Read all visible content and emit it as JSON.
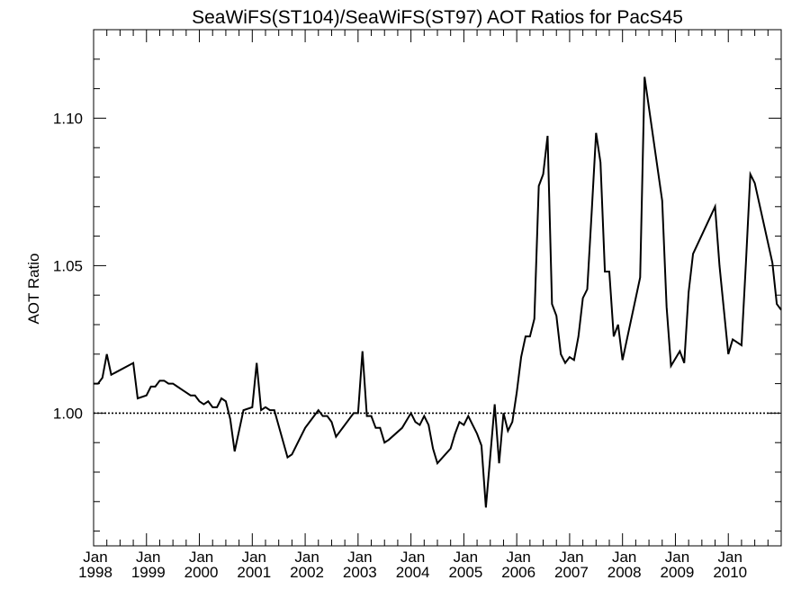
{
  "chart_data": {
    "type": "line",
    "title": "SeaWiFS(ST104)/SeaWiFS(ST97)  AOT Ratios for PacS45",
    "xlabel": "",
    "ylabel": "AOT Ratio",
    "xlim": [
      "1998-01",
      "2010-12"
    ],
    "ylim": [
      0.955,
      1.13
    ],
    "grid": false,
    "legend": "none",
    "line_color": "#000000",
    "y_ticks": [
      {
        "value": 1.0,
        "label": "1.00"
      },
      {
        "value": 1.05,
        "label": "1.05"
      },
      {
        "value": 1.1,
        "label": "1.10"
      }
    ],
    "reference_lines": [
      {
        "value": 1.0,
        "style": "dotted"
      }
    ],
    "x_ticks": [
      {
        "date": "1998-01",
        "month": "Jan",
        "year": "1998"
      },
      {
        "date": "1999-01",
        "month": "Jan",
        "year": "1999"
      },
      {
        "date": "2000-01",
        "month": "Jan",
        "year": "2000"
      },
      {
        "date": "2001-01",
        "month": "Jan",
        "year": "2001"
      },
      {
        "date": "2002-01",
        "month": "Jan",
        "year": "2002"
      },
      {
        "date": "2003-01",
        "month": "Jan",
        "year": "2003"
      },
      {
        "date": "2004-01",
        "month": "Jan",
        "year": "2004"
      },
      {
        "date": "2005-01",
        "month": "Jan",
        "year": "2005"
      },
      {
        "date": "2006-01",
        "month": "Jan",
        "year": "2006"
      },
      {
        "date": "2007-01",
        "month": "Jan",
        "year": "2007"
      },
      {
        "date": "2008-01",
        "month": "Jan",
        "year": "2008"
      },
      {
        "date": "2009-01",
        "month": "Jan",
        "year": "2009"
      },
      {
        "date": "2010-01",
        "month": "Jan",
        "year": "2010"
      }
    ],
    "series": [
      {
        "points": [
          [
            "1998-01",
            1.01
          ],
          [
            "1998-02",
            1.01
          ],
          [
            "1998-03",
            1.012
          ],
          [
            "1998-04",
            1.02
          ],
          [
            "1998-05",
            1.013
          ],
          [
            "1998-10",
            1.017
          ],
          [
            "1998-11",
            1.005
          ],
          [
            "1999-01",
            1.006
          ],
          [
            "1999-02",
            1.009
          ],
          [
            "1999-03",
            1.009
          ],
          [
            "1999-04",
            1.011
          ],
          [
            "1999-05",
            1.011
          ],
          [
            "1999-06",
            1.01
          ],
          [
            "1999-07",
            1.01
          ],
          [
            "1999-08",
            1.009
          ],
          [
            "1999-09",
            1.008
          ],
          [
            "1999-10",
            1.007
          ],
          [
            "1999-11",
            1.006
          ],
          [
            "1999-12",
            1.006
          ],
          [
            "2000-01",
            1.004
          ],
          [
            "2000-02",
            1.003
          ],
          [
            "2000-03",
            1.004
          ],
          [
            "2000-04",
            1.002
          ],
          [
            "2000-05",
            1.002
          ],
          [
            "2000-06",
            1.005
          ],
          [
            "2000-07",
            1.004
          ],
          [
            "2000-08",
            0.998
          ],
          [
            "2000-09",
            0.987
          ],
          [
            "2000-10",
            0.994
          ],
          [
            "2000-11",
            1.001
          ],
          [
            "2001-01",
            1.002
          ],
          [
            "2001-02",
            1.017
          ],
          [
            "2001-03",
            1.001
          ],
          [
            "2001-04",
            1.002
          ],
          [
            "2001-05",
            1.001
          ],
          [
            "2001-06",
            1.001
          ],
          [
            "2001-09",
            0.985
          ],
          [
            "2001-10",
            0.986
          ],
          [
            "2001-11",
            0.989
          ],
          [
            "2002-01",
            0.995
          ],
          [
            "2002-02",
            0.997
          ],
          [
            "2002-04",
            1.001
          ],
          [
            "2002-05",
            0.999
          ],
          [
            "2002-06",
            0.999
          ],
          [
            "2002-07",
            0.997
          ],
          [
            "2002-08",
            0.992
          ],
          [
            "2002-09",
            0.994
          ],
          [
            "2002-11",
            0.998
          ],
          [
            "2002-12",
            1.0
          ],
          [
            "2003-01",
            1.0
          ],
          [
            "2003-02",
            1.021
          ],
          [
            "2003-03",
            0.999
          ],
          [
            "2003-04",
            0.999
          ],
          [
            "2003-05",
            0.995
          ],
          [
            "2003-06",
            0.995
          ],
          [
            "2003-07",
            0.99
          ],
          [
            "2003-08",
            0.991
          ],
          [
            "2003-11",
            0.995
          ],
          [
            "2004-01",
            1.0
          ],
          [
            "2004-02",
            0.997
          ],
          [
            "2004-03",
            0.996
          ],
          [
            "2004-04",
            0.999
          ],
          [
            "2004-05",
            0.996
          ],
          [
            "2004-06",
            0.988
          ],
          [
            "2004-07",
            0.983
          ],
          [
            "2004-10",
            0.988
          ],
          [
            "2004-11",
            0.993
          ],
          [
            "2004-12",
            0.997
          ],
          [
            "2005-01",
            0.996
          ],
          [
            "2005-02",
            0.999
          ],
          [
            "2005-03",
            0.996
          ],
          [
            "2005-04",
            0.993
          ],
          [
            "2005-05",
            0.989
          ],
          [
            "2005-06",
            0.968
          ],
          [
            "2005-08",
            1.003
          ],
          [
            "2005-09",
            0.983
          ],
          [
            "2005-10",
            1.0
          ],
          [
            "2005-11",
            0.994
          ],
          [
            "2005-12",
            0.997
          ],
          [
            "2006-01",
            1.007
          ],
          [
            "2006-02",
            1.019
          ],
          [
            "2006-03",
            1.026
          ],
          [
            "2006-04",
            1.026
          ],
          [
            "2006-05",
            1.032
          ],
          [
            "2006-06",
            1.077
          ],
          [
            "2006-07",
            1.081
          ],
          [
            "2006-08",
            1.094
          ],
          [
            "2006-09",
            1.037
          ],
          [
            "2006-10",
            1.033
          ],
          [
            "2006-11",
            1.02
          ],
          [
            "2006-12",
            1.017
          ],
          [
            "2007-01",
            1.019
          ],
          [
            "2007-02",
            1.018
          ],
          [
            "2007-03",
            1.026
          ],
          [
            "2007-04",
            1.039
          ],
          [
            "2007-05",
            1.042
          ],
          [
            "2007-06",
            1.068
          ],
          [
            "2007-07",
            1.095
          ],
          [
            "2007-08",
            1.085
          ],
          [
            "2007-09",
            1.048
          ],
          [
            "2007-10",
            1.048
          ],
          [
            "2007-11",
            1.026
          ],
          [
            "2007-12",
            1.03
          ],
          [
            "2008-01",
            1.018
          ],
          [
            "2008-05",
            1.046
          ],
          [
            "2008-06",
            1.114
          ],
          [
            "2008-10",
            1.072
          ],
          [
            "2008-11",
            1.036
          ],
          [
            "2008-12",
            1.016
          ],
          [
            "2009-02",
            1.021
          ],
          [
            "2009-03",
            1.017
          ],
          [
            "2009-04",
            1.041
          ],
          [
            "2009-05",
            1.054
          ],
          [
            "2009-10",
            1.07
          ],
          [
            "2009-11",
            1.05
          ],
          [
            "2009-12",
            1.035
          ],
          [
            "2010-01",
            1.02
          ],
          [
            "2010-02",
            1.025
          ],
          [
            "2010-03",
            1.024
          ],
          [
            "2010-04",
            1.023
          ],
          [
            "2010-05",
            1.051
          ],
          [
            "2010-06",
            1.081
          ],
          [
            "2010-07",
            1.078
          ],
          [
            "2010-11",
            1.051
          ],
          [
            "2010-12",
            1.037
          ],
          [
            "2011-01",
            1.035
          ]
        ]
      }
    ]
  }
}
